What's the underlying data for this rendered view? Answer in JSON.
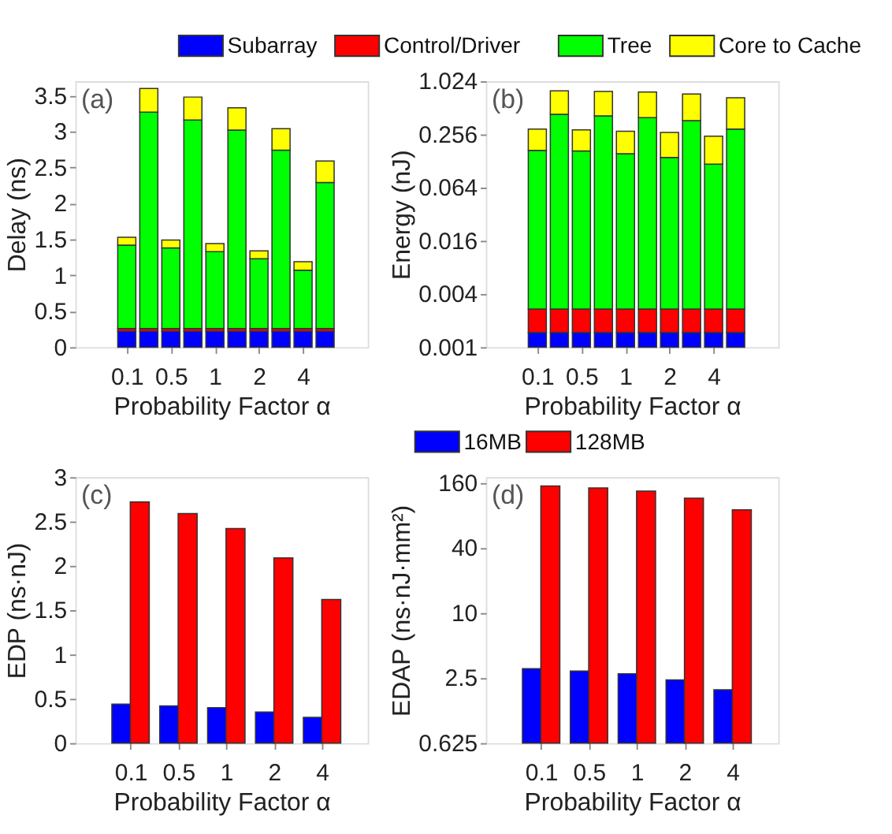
{
  "chart_data": [
    {
      "type": "bar",
      "stacked": true,
      "ylabel": "Delay (ns)",
      "xlabel": "Probability Factor α",
      "annotations": [
        "(a)"
      ],
      "legend": "top",
      "ylim": [
        0,
        3.7
      ],
      "yticks": [
        0,
        0.5,
        1,
        1.5,
        2,
        2.5,
        3,
        3.5
      ],
      "categories": [
        "0.1",
        null,
        "0.5",
        null,
        "1",
        null,
        "2",
        null,
        "4",
        null
      ],
      "series": [
        {
          "name": "Subarray",
          "color": "#0000ff",
          "values": [
            0.22,
            0.22,
            0.22,
            0.22,
            0.22,
            0.22,
            0.22,
            0.22,
            0.22,
            0.22
          ]
        },
        {
          "name": "Control/Driver",
          "color": "#ff0000",
          "values": [
            0.04,
            0.04,
            0.04,
            0.04,
            0.04,
            0.04,
            0.04,
            0.04,
            0.04,
            0.04
          ]
        },
        {
          "name": "Tree",
          "color": "#00ff00",
          "values": [
            1.16,
            3.01,
            1.12,
            2.9,
            1.07,
            2.76,
            0.97,
            2.48,
            0.81,
            2.03
          ]
        },
        {
          "name": "Core to Cache",
          "color": "#ffff00",
          "values": [
            0.11,
            0.33,
            0.11,
            0.32,
            0.11,
            0.31,
            0.11,
            0.3,
            0.12,
            0.3
          ]
        }
      ]
    },
    {
      "type": "bar",
      "stacked": true,
      "log": "y",
      "ylabel": "Energy (nJ)",
      "xlabel": "Probability Factor α",
      "annotations": [
        "(b)"
      ],
      "ylim": [
        0.001,
        1.024
      ],
      "yticks": [
        0.001,
        0.004,
        0.016,
        0.064,
        0.256,
        1.024
      ],
      "categories": [
        "0.1",
        null,
        "0.5",
        null,
        "1",
        null,
        "2",
        null,
        "4",
        null
      ],
      "series": [
        {
          "color": "#0000ff",
          "values": [
            0.00147,
            0.00147,
            0.00147,
            0.00147,
            0.00147,
            0.00147,
            0.00147,
            0.00147,
            0.00147,
            0.00147
          ]
        },
        {
          "color": "#ff0000",
          "values": [
            0.00123,
            0.00123,
            0.00123,
            0.00123,
            0.00123,
            0.00123,
            0.00123,
            0.00123,
            0.00123,
            0.00123
          ]
        },
        {
          "color": "#00ff00",
          "values": [
            0.166,
            0.43,
            0.164,
            0.413,
            0.152,
            0.394,
            0.138,
            0.364,
            0.115,
            0.291
          ]
        },
        {
          "color": "#ffff00",
          "values": [
            0.125,
            0.363,
            0.122,
            0.369,
            0.123,
            0.377,
            0.129,
            0.369,
            0.127,
            0.374
          ]
        }
      ]
    },
    {
      "type": "bar",
      "ylabel": "EDP (ns·nJ)",
      "xlabel": "Probability Factor α",
      "annotations": [
        "(c)"
      ],
      "legend": "top",
      "ylim": [
        0,
        3
      ],
      "yticks": [
        0,
        0.5,
        1,
        1.5,
        2,
        2.5,
        3
      ],
      "categories": [
        "0.1",
        "0.5",
        "1",
        "2",
        "4"
      ],
      "series": [
        {
          "name": "16MB",
          "color": "#0000ff",
          "values": [
            0.44,
            0.42,
            0.4,
            0.35,
            0.29
          ]
        },
        {
          "name": "128MB",
          "color": "#ff0000",
          "values": [
            2.72,
            2.59,
            2.42,
            2.09,
            1.62
          ]
        }
      ]
    },
    {
      "type": "bar",
      "log": "y",
      "ylabel": "EDAP (ns·nJ·mm²)",
      "xlabel": "Probability Factor α",
      "annotations": [
        "(d)"
      ],
      "ylim": [
        0.625,
        180
      ],
      "yticks": [
        0.625,
        2.5,
        10,
        40,
        160
      ],
      "categories": [
        "0.1",
        "0.5",
        "1",
        "2",
        "4"
      ],
      "series": [
        {
          "color": "#0000ff",
          "values": [
            3.05,
            2.9,
            2.73,
            2.4,
            1.95
          ]
        },
        {
          "color": "#ff0000",
          "values": [
            149,
            143,
            134,
            115,
            90
          ]
        }
      ]
    }
  ]
}
